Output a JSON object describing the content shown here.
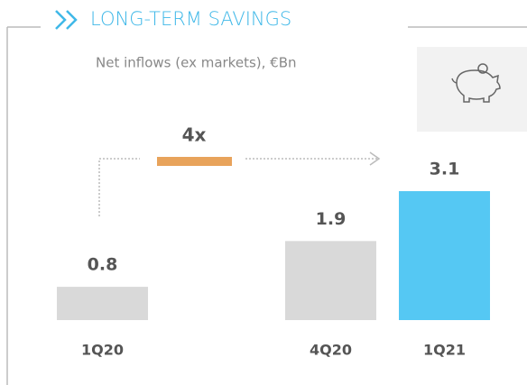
{
  "chart_data": {
    "type": "bar",
    "title": "LONG-TERM SAVINGS",
    "subtitle": "Net inflows (ex markets), €Bn",
    "categories": [
      "1Q20",
      "4Q20",
      "1Q21"
    ],
    "values": [
      0.8,
      1.9,
      3.1
    ],
    "colors": [
      "#d9d9d9",
      "#d9d9d9",
      "#55c8f3"
    ],
    "annotation": "4x"
  }
}
